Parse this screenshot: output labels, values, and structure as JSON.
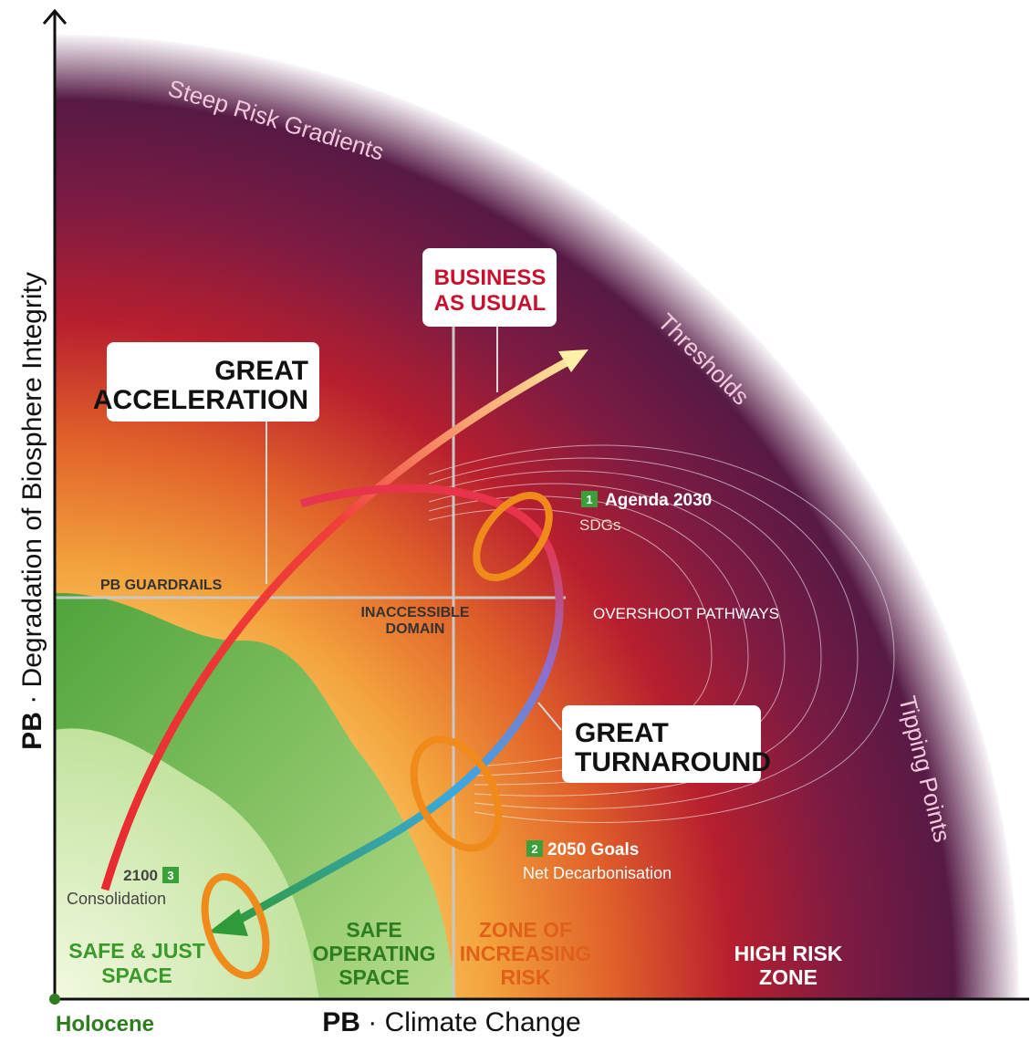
{
  "axes": {
    "y_label": {
      "bold": "PB",
      "text": "· Degradation of Biosphere Integrity"
    },
    "x_label": {
      "bold": "PB",
      "text": "· Climate Change"
    },
    "origin": "Holocene"
  },
  "gradients": [
    "Steep Risk Gradients",
    "Thresholds",
    "Tipping Points"
  ],
  "pathways": {
    "business_as_usual": [
      "BUSINESS",
      "AS USUAL"
    ],
    "great_acceleration": [
      "GREAT",
      "ACCELERATION"
    ],
    "great_turnaround": [
      "GREAT",
      "TURNAROUND"
    ]
  },
  "labels": {
    "guardrails": "PB GUARDRAILS",
    "inaccessible": [
      "INACCESSIBLE",
      "DOMAIN"
    ],
    "overshoot": "OVERSHOOT PATHWAYS"
  },
  "milestones": [
    {
      "number": "1",
      "title": "Agenda 2030",
      "subtitle": "SDGs"
    },
    {
      "number": "2",
      "title": "2050 Goals",
      "subtitle": "Net Decarbonisation"
    },
    {
      "number": "3",
      "title": "2100",
      "subtitle": "Consolidation"
    }
  ],
  "zones": [
    [
      "SAFE & JUST",
      "SPACE"
    ],
    [
      "SAFE",
      "OPERATING",
      "SPACE"
    ],
    [
      "ZONE OF",
      "INCREASING",
      "RISK"
    ],
    [
      "HIGH RISK",
      "ZONE"
    ]
  ]
}
